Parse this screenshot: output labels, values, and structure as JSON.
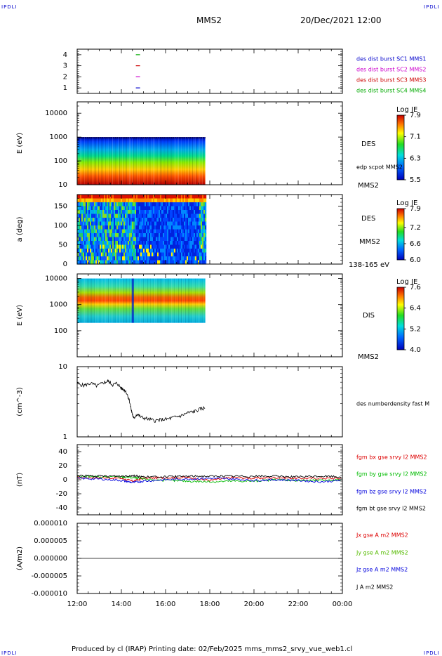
{
  "header": {
    "left_corner": "IPDLI",
    "right_corner": "IPDLI",
    "spacecraft": "MMS2",
    "date_time": "20/Dec/2021 12:00"
  },
  "footer": {
    "text": "Produced by cl (IRAP)   Printing date: 02/Feb/2025   mms_mms2_srvy_vue_web1.cl",
    "left_corner": "IPDLI",
    "right_corner": "IPDLI"
  },
  "chart_data": [
    {
      "type": "scatter",
      "id": "availability",
      "yticks": [
        "1",
        "2",
        "3",
        "4"
      ],
      "ylim": [
        0.5,
        4.5
      ],
      "x_hours": [
        14.75
      ],
      "series": [
        {
          "name": "des dist burst SC1 MMS1",
          "y": 1,
          "color": "#0000cc"
        },
        {
          "name": "des dist burst SC2 MMS2",
          "y": 2,
          "color": "#cc00cc"
        },
        {
          "name": "des dist burst SC3 MMS3",
          "y": 3,
          "color": "#cc0000"
        },
        {
          "name": "des dist burst SC4 MMS4",
          "y": 4,
          "color": "#00aa00"
        }
      ]
    },
    {
      "type": "heatmap",
      "id": "des-energy",
      "ylabel": "E (eV)",
      "yscale": "log",
      "yticks": [
        "10",
        "100",
        "1000",
        "10000"
      ],
      "ylim": [
        10,
        30000
      ],
      "data_range_y": [
        10,
        1000
      ],
      "x_hours_range": [
        12.0,
        17.8
      ],
      "right_labels": [
        "DES",
        "edp scpot MMS2",
        "MMS2"
      ],
      "colorbar": {
        "title": "Log JE",
        "ticks": [
          "5.5",
          "6.3",
          "7.1",
          "7.9"
        ],
        "min": 5.5,
        "max": 7.9
      }
    },
    {
      "type": "heatmap",
      "id": "des-pitch",
      "ylabel": "a (deg)",
      "yticks": [
        "0",
        "50",
        "100",
        "150"
      ],
      "ylim": [
        0,
        180
      ],
      "x_hours_range": [
        12.0,
        17.8
      ],
      "right_labels": [
        "DES",
        "MMS2",
        "138-165 eV"
      ],
      "colorbar": {
        "title": "Log JE",
        "ticks": [
          "6.0",
          "6.6",
          "7.2",
          "7.9"
        ],
        "min": 6.0,
        "max": 7.9
      }
    },
    {
      "type": "heatmap",
      "id": "dis-energy",
      "ylabel": "E (eV)",
      "yscale": "log",
      "yticks": [
        "100",
        "1000",
        "10000"
      ],
      "ylim": [
        10,
        15000
      ],
      "data_range_y": [
        200,
        10000
      ],
      "x_hours_range": [
        12.0,
        17.8
      ],
      "right_labels": [
        "DIS",
        "MMS2"
      ],
      "colorbar": {
        "title": "Log JE",
        "ticks": [
          "4.0",
          "5.2",
          "6.4",
          "7.6"
        ],
        "min": 4.0,
        "max": 7.6
      }
    },
    {
      "type": "line",
      "id": "density",
      "ylabel": "(cm^-3)",
      "yscale": "log",
      "yticks": [
        "1",
        "10"
      ],
      "ylim": [
        1,
        10
      ],
      "series": [
        {
          "name": "des numberdensity fast M",
          "color": "#000000",
          "x": [
            12.0,
            12.3,
            12.6,
            12.9,
            13.2,
            13.4,
            13.6,
            13.8,
            14.0,
            14.2,
            14.35,
            14.45,
            14.55,
            14.7,
            14.9,
            15.2,
            15.5,
            15.8,
            16.1,
            16.4,
            16.7,
            17.0,
            17.3,
            17.6,
            17.8
          ],
          "y": [
            5.7,
            5.4,
            5.8,
            5.3,
            5.9,
            6.2,
            5.5,
            5.8,
            4.9,
            4.5,
            3.4,
            2.4,
            1.8,
            2.1,
            1.9,
            1.8,
            1.7,
            1.75,
            1.8,
            1.9,
            2.0,
            2.2,
            2.3,
            2.5,
            2.6
          ]
        }
      ]
    },
    {
      "type": "line",
      "id": "fgm",
      "ylabel": "(nT)",
      "yticks": [
        "-40",
        "-20",
        "0",
        "20",
        "40"
      ],
      "ylim": [
        -50,
        50
      ],
      "series": [
        {
          "name": "fgm bx gse srvy l2 MMS2",
          "color": "#dd0000",
          "x": [
            12,
            13,
            14,
            14.5,
            15,
            16,
            17,
            18,
            19,
            20,
            21,
            22,
            23,
            24
          ],
          "y": [
            3,
            3,
            2,
            -2,
            2,
            3,
            3,
            -1,
            3,
            2,
            3,
            2,
            2,
            2
          ]
        },
        {
          "name": "fgm by gse srvy l2 MMS2",
          "color": "#00bb00",
          "x": [
            12,
            13,
            14,
            14.5,
            15,
            16,
            17,
            18,
            19,
            20,
            21,
            22,
            23,
            24
          ],
          "y": [
            5,
            4,
            4,
            3,
            1,
            -1,
            -2,
            -3,
            -2,
            -2,
            0,
            -1,
            -1,
            0
          ]
        },
        {
          "name": "fgm bz gse srvy l2 MMS2",
          "color": "#0000dd",
          "x": [
            12,
            13,
            14,
            14.5,
            15,
            16,
            17,
            18,
            19,
            20,
            21,
            22,
            23,
            24
          ],
          "y": [
            2,
            1,
            -1,
            -4,
            -2,
            0,
            1,
            2,
            1,
            -1,
            0,
            -1,
            -3,
            -1
          ]
        },
        {
          "name": "fgm bt gse srvy l2 MMS2",
          "color": "#000000",
          "x": [
            12,
            13,
            14,
            14.5,
            15,
            16,
            17,
            18,
            19,
            20,
            21,
            22,
            23,
            24
          ],
          "y": [
            6,
            5,
            5,
            6,
            4,
            4,
            5,
            5,
            5,
            5,
            5,
            4,
            5,
            4
          ]
        }
      ]
    },
    {
      "type": "line",
      "id": "current",
      "ylabel": "(A/m2)",
      "yticks": [
        "-0.000010",
        "-0.000005",
        "0.000000",
        "0.000005",
        "0.000010"
      ],
      "ylim": [
        -1e-05,
        1e-05
      ],
      "series": [
        {
          "name": "Jx gse A m2 MMS2",
          "color": "#dd0000",
          "x": [
            12,
            24
          ],
          "y": [
            0,
            0
          ]
        },
        {
          "name": "Jy gse A m2 MMS2",
          "color": "#55bb00",
          "x": [
            12,
            24
          ],
          "y": [
            0,
            0
          ]
        },
        {
          "name": "Jz gse A m2 MMS2",
          "color": "#0000dd",
          "x": [
            12,
            24
          ],
          "y": [
            0,
            0
          ]
        },
        {
          "name": "J A m2 MMS2",
          "color": "#000000",
          "x": [
            12,
            24
          ],
          "y": [
            0,
            0
          ]
        }
      ]
    }
  ],
  "time_axis": {
    "ticks": [
      "12:00",
      "14:00",
      "16:00",
      "18:00",
      "20:00",
      "22:00",
      "00:00"
    ],
    "start_hour": 12,
    "end_hour": 24
  }
}
